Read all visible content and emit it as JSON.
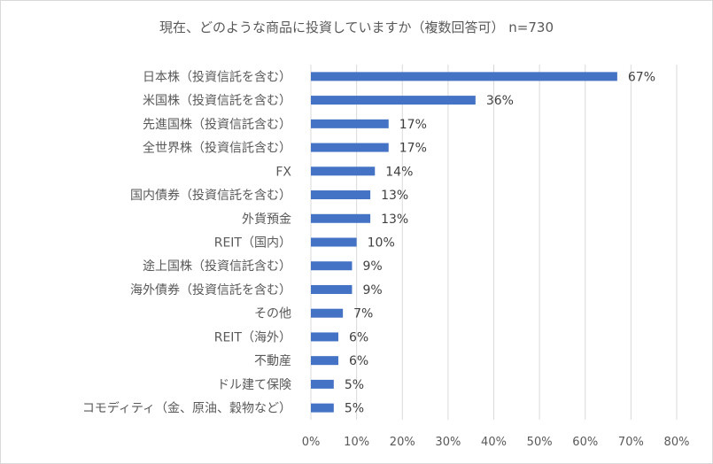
{
  "chart_data": {
    "type": "bar",
    "orientation": "horizontal",
    "title": "現在、どのような商品に投資していますか（複数回答可） n=730",
    "xlabel": "",
    "ylabel": "",
    "xlim": [
      0,
      80
    ],
    "x_ticks": [
      "0%",
      "10%",
      "20%",
      "30%",
      "40%",
      "50%",
      "60%",
      "70%",
      "80%"
    ],
    "grid": true,
    "legend": "none",
    "bar_color": "#4472c4",
    "categories": [
      "日本株（投資信託を含む）",
      "米国株（投資信託を含む）",
      "先進国株（投資信託含む）",
      "全世界株（投資信託含む）",
      "FX",
      "国内債券（投資信託を含む）",
      "外貨預金",
      "REIT（国内）",
      "途上国株（投資信託含む）",
      "海外債券（投資信託を含む）",
      "その他",
      "REIT（海外）",
      "不動産",
      "ドル建て保険",
      "コモディティ（金、原油、穀物など）"
    ],
    "values": [
      67,
      36,
      17,
      17,
      14,
      13,
      13,
      10,
      9,
      9,
      7,
      6,
      6,
      5,
      5
    ],
    "value_labels": [
      "67%",
      "36%",
      "17%",
      "17%",
      "14%",
      "13%",
      "13%",
      "10%",
      "9%",
      "9%",
      "7%",
      "6%",
      "6%",
      "5%",
      "5%"
    ]
  }
}
